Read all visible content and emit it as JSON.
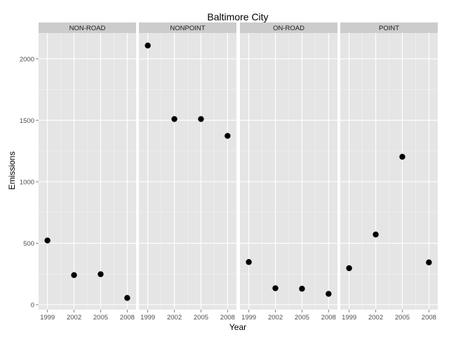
{
  "chart_data": {
    "type": "scatter",
    "title": "Baltimore City",
    "xlabel": "Year",
    "ylabel": "Emissions",
    "x_ticks": [
      1999,
      2002,
      2005,
      2008
    ],
    "y_ticks": [
      0,
      500,
      1000,
      1500,
      2000
    ],
    "xlim": [
      1998,
      2009
    ],
    "ylim": [
      -40,
      2210
    ],
    "grid": true,
    "legend": "none",
    "point_color": "#000000",
    "panel_background": "#e5e5e5",
    "strip_background": "#cccccc",
    "grid_color": "#ffffff",
    "panels": [
      {
        "label": "NON-ROAD",
        "points": [
          {
            "x": 1999,
            "y": 522
          },
          {
            "x": 2002,
            "y": 241
          },
          {
            "x": 2005,
            "y": 248
          },
          {
            "x": 2008,
            "y": 55
          }
        ]
      },
      {
        "label": "NONPOINT",
        "points": [
          {
            "x": 1999,
            "y": 2108
          },
          {
            "x": 2002,
            "y": 1510
          },
          {
            "x": 2005,
            "y": 1510
          },
          {
            "x": 2008,
            "y": 1373
          }
        ]
      },
      {
        "label": "ON-ROAD",
        "points": [
          {
            "x": 1999,
            "y": 347
          },
          {
            "x": 2002,
            "y": 134
          },
          {
            "x": 2005,
            "y": 130
          },
          {
            "x": 2008,
            "y": 88
          }
        ]
      },
      {
        "label": "POINT",
        "points": [
          {
            "x": 1999,
            "y": 297
          },
          {
            "x": 2002,
            "y": 571
          },
          {
            "x": 2005,
            "y": 1203
          },
          {
            "x": 2008,
            "y": 344
          }
        ]
      }
    ]
  }
}
